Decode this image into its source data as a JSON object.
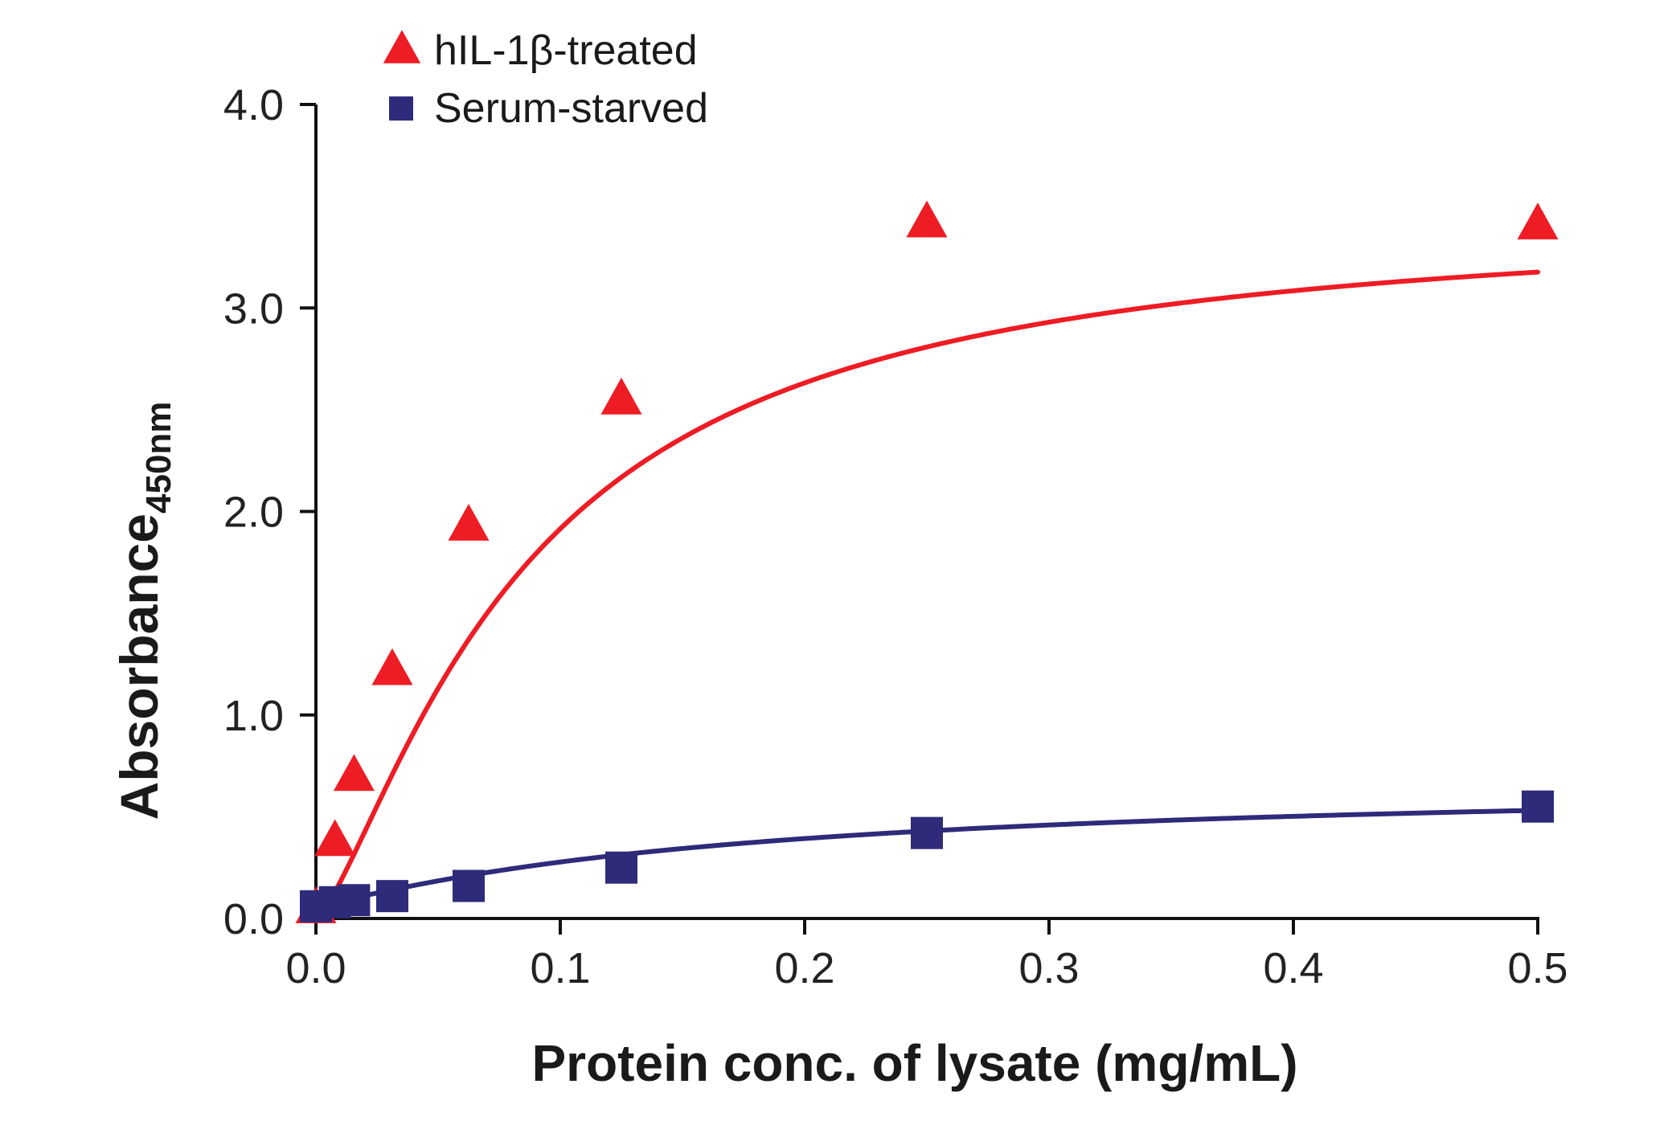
{
  "chart_data": {
    "type": "scatter",
    "xlabel": "Protein conc. of lysate (mg/mL)",
    "ylabel_main": "Absorbance",
    "ylabel_sub": "450nm",
    "xlim": [
      0,
      0.5
    ],
    "ylim": [
      0,
      4.0
    ],
    "x_ticks": [
      "0.0",
      "0.1",
      "0.2",
      "0.3",
      "0.4",
      "0.5"
    ],
    "y_ticks": [
      "0.0",
      "1.0",
      "2.0",
      "3.0",
      "4.0"
    ],
    "grid": false,
    "legend_position": "top-left",
    "series": [
      {
        "name": "hIL-1β-treated",
        "marker": "triangle",
        "color": "#ee1c24",
        "x": [
          0.0,
          0.0078,
          0.0156,
          0.03125,
          0.0625,
          0.125,
          0.25,
          0.5
        ],
        "y": [
          0.05,
          0.38,
          0.7,
          1.22,
          1.93,
          2.55,
          3.42,
          3.41
        ],
        "fit": {
          "model": "saturation",
          "ymax": 3.47,
          "k": 0.0857,
          "n": 1.35
        }
      },
      {
        "name": "Serum-starved",
        "marker": "square",
        "color": "#2e2b7a",
        "x": [
          0.0,
          0.0078,
          0.0156,
          0.03125,
          0.0625,
          0.125,
          0.25,
          0.5
        ],
        "y": [
          0.06,
          0.08,
          0.09,
          0.11,
          0.16,
          0.25,
          0.42,
          0.55
        ],
        "fit": {
          "model": "saturation",
          "y0": 0.06,
          "ymax": 0.68,
          "k": 0.175,
          "n": 1.1
        }
      }
    ]
  }
}
